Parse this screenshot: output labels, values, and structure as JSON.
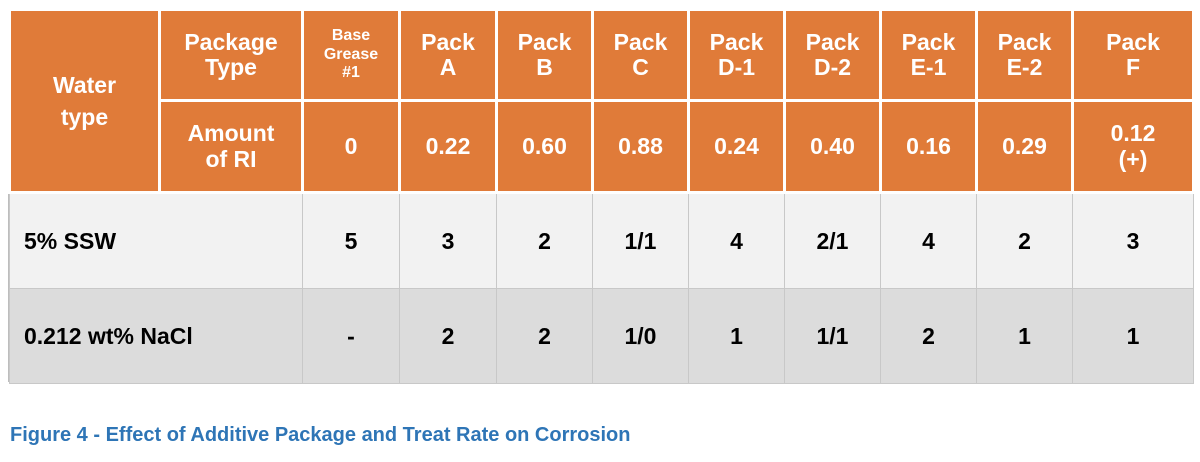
{
  "table": {
    "corner_label": "Water type",
    "package_type_label": "Package Type",
    "amount_label": "Amount of RI",
    "columns": [
      {
        "name": "Base Grease #1",
        "amount": "0"
      },
      {
        "name": "Pack A",
        "amount": "0.22"
      },
      {
        "name": "Pack B",
        "amount": "0.60"
      },
      {
        "name": "Pack C",
        "amount": "0.88"
      },
      {
        "name": "Pack D-1",
        "amount": "0.24"
      },
      {
        "name": "Pack D-2",
        "amount": "0.40"
      },
      {
        "name": "Pack E-1",
        "amount": "0.16"
      },
      {
        "name": "Pack E-2",
        "amount": "0.29"
      },
      {
        "name": "Pack F",
        "amount": "0.12 (+)"
      }
    ],
    "rows": [
      {
        "water_type": "5% SSW",
        "values": [
          "5",
          "3",
          "2",
          "1/1",
          "4",
          "2/1",
          "4",
          "2",
          "3"
        ]
      },
      {
        "water_type": "0.212 wt% NaCl",
        "values": [
          "-",
          "2",
          "2",
          "1/0",
          "1",
          "1/1",
          "2",
          "1",
          "1"
        ]
      }
    ],
    "colors": {
      "header": "#e07b39",
      "row_light": "#f2f2f2",
      "row_dark": "#dcdcdc",
      "caption": "#2e75b6"
    }
  },
  "caption": "Figure 4 - Effect of Additive Package and Treat Rate on Corrosion"
}
